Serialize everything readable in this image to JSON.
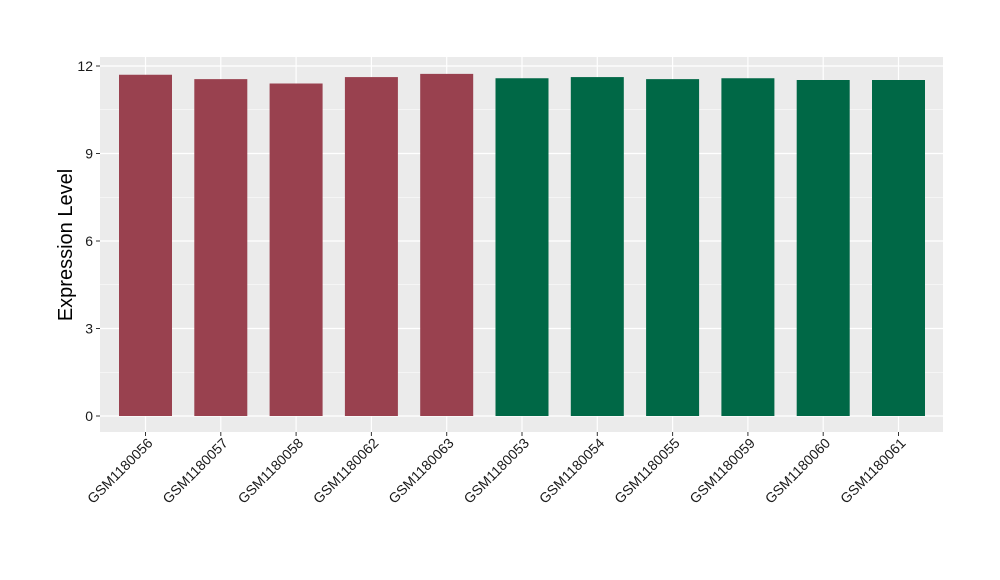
{
  "chart_data": {
    "type": "bar",
    "title": "",
    "xlabel": "",
    "ylabel": "Expression Level",
    "ylim": [
      0,
      12.3
    ],
    "yticks": [
      0,
      3,
      6,
      9,
      12
    ],
    "grid": true,
    "legend": "none",
    "colors": {
      "panel_background": "#ebebeb",
      "grid_major": "#ffffff",
      "group_a": "#99414f",
      "group_b": "#006846"
    },
    "categories": [
      "GSM1180056",
      "GSM1180057",
      "GSM1180058",
      "GSM1180062",
      "GSM1180063",
      "GSM1180053",
      "GSM1180054",
      "GSM1180055",
      "GSM1180059",
      "GSM1180060",
      "GSM1180061"
    ],
    "values": [
      11.7,
      11.55,
      11.4,
      11.62,
      11.73,
      11.58,
      11.62,
      11.55,
      11.58,
      11.52,
      11.52
    ],
    "bar_colors": [
      "#99414f",
      "#99414f",
      "#99414f",
      "#99414f",
      "#99414f",
      "#006846",
      "#006846",
      "#006846",
      "#006846",
      "#006846",
      "#006846"
    ]
  }
}
